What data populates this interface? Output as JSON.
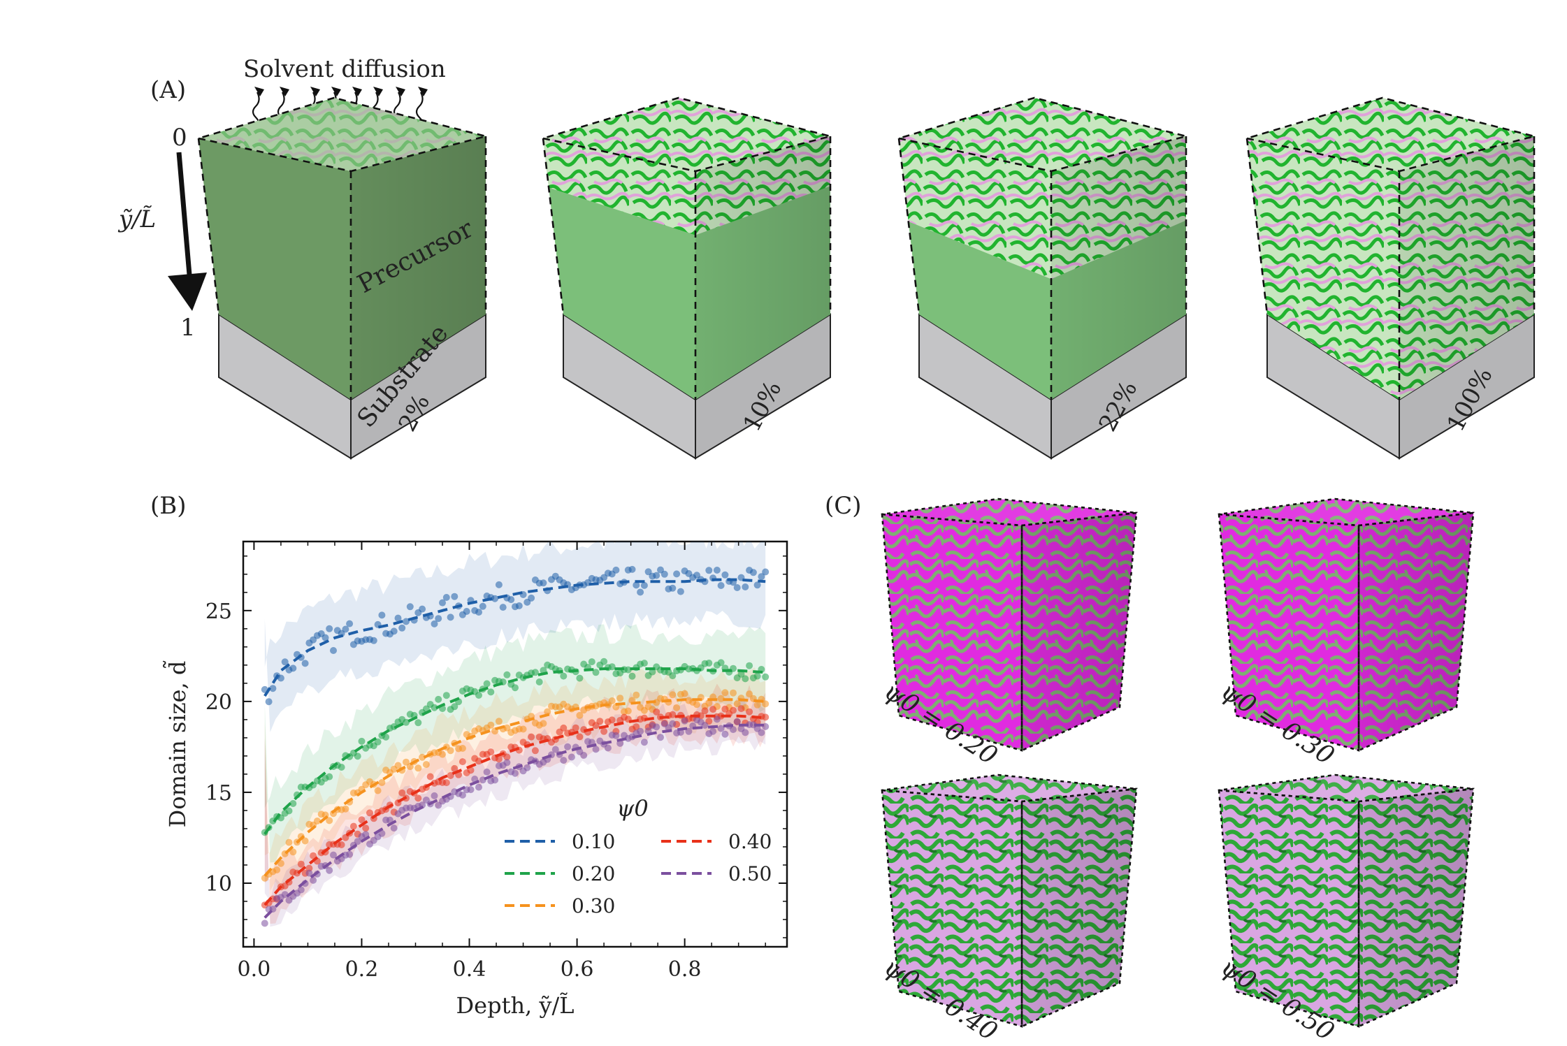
{
  "panel_a": {
    "label": "(A)",
    "solvent_label": "Solvent diffusion",
    "axis_label": "ỹ/L̃",
    "axis_top": "0",
    "axis_bottom": "1",
    "precursor_label": "Precursor",
    "substrate_label": "Substrate",
    "cubes": [
      {
        "percent": "2%",
        "fraction": 0.02
      },
      {
        "percent": "10%",
        "fraction": 0.1
      },
      {
        "percent": "22%",
        "fraction": 0.22
      },
      {
        "percent": "100%",
        "fraction": 1.0
      }
    ]
  },
  "panel_b": {
    "label": "(B)",
    "chart_data": {
      "type": "line",
      "xlabel": "Depth, ỹ/L̃",
      "ylabel": "Domain size, d̃",
      "xlim": [
        -0.02,
        0.99
      ],
      "ylim": [
        6.5,
        28.8
      ],
      "xticks": [
        "0.0",
        "0.2",
        "0.4",
        "0.6",
        "0.8"
      ],
      "xtick_values": [
        0.0,
        0.2,
        0.4,
        0.6,
        0.8
      ],
      "yticks": [
        "10",
        "15",
        "20",
        "25"
      ],
      "ytick_values": [
        10,
        15,
        20,
        25
      ],
      "grid": false,
      "legend_title": "ψ0",
      "legend_placement": "lower-right",
      "series": [
        {
          "name": "0.10",
          "color": "#1f5fa8",
          "x": [
            0.02,
            0.05,
            0.1,
            0.15,
            0.2,
            0.25,
            0.3,
            0.35,
            0.4,
            0.45,
            0.5,
            0.55,
            0.6,
            0.65,
            0.7,
            0.75,
            0.8,
            0.85,
            0.9,
            0.95
          ],
          "y": [
            20.3,
            21.7,
            22.8,
            23.5,
            23.9,
            24.2,
            24.6,
            25.0,
            25.4,
            25.7,
            26.0,
            26.2,
            26.4,
            26.5,
            26.6,
            26.6,
            26.6,
            26.7,
            26.7,
            26.6
          ]
        },
        {
          "name": "0.20",
          "color": "#1fa34a",
          "x": [
            0.02,
            0.05,
            0.1,
            0.15,
            0.2,
            0.25,
            0.3,
            0.35,
            0.4,
            0.45,
            0.5,
            0.55,
            0.6,
            0.65,
            0.7,
            0.75,
            0.8,
            0.85,
            0.9,
            0.95
          ],
          "y": [
            12.7,
            13.9,
            15.3,
            16.5,
            17.5,
            18.4,
            19.1,
            19.8,
            20.4,
            20.9,
            21.3,
            21.6,
            21.7,
            21.8,
            21.8,
            21.8,
            21.8,
            21.7,
            21.7,
            21.6
          ]
        },
        {
          "name": "0.30",
          "color": "#f5921e",
          "x": [
            0.02,
            0.05,
            0.1,
            0.15,
            0.2,
            0.25,
            0.3,
            0.35,
            0.4,
            0.45,
            0.5,
            0.55,
            0.6,
            0.65,
            0.7,
            0.75,
            0.8,
            0.85,
            0.9,
            0.95
          ],
          "y": [
            10.4,
            11.4,
            12.8,
            14.0,
            15.0,
            15.9,
            16.7,
            17.4,
            18.0,
            18.5,
            18.9,
            19.3,
            19.6,
            19.8,
            19.9,
            20.0,
            20.1,
            20.1,
            20.1,
            20.0
          ]
        },
        {
          "name": "0.40",
          "color": "#e8311a",
          "x": [
            0.02,
            0.05,
            0.1,
            0.15,
            0.2,
            0.25,
            0.3,
            0.35,
            0.4,
            0.45,
            0.5,
            0.55,
            0.6,
            0.65,
            0.7,
            0.75,
            0.8,
            0.85,
            0.9,
            0.95
          ],
          "y": [
            8.8,
            9.8,
            11.0,
            12.2,
            13.2,
            14.2,
            15.0,
            15.8,
            16.4,
            17.0,
            17.5,
            17.9,
            18.3,
            18.6,
            18.9,
            19.1,
            19.2,
            19.2,
            19.2,
            19.1
          ]
        },
        {
          "name": "0.50",
          "color": "#7b4f9e",
          "x": [
            0.02,
            0.05,
            0.1,
            0.15,
            0.2,
            0.25,
            0.3,
            0.35,
            0.4,
            0.45,
            0.5,
            0.55,
            0.6,
            0.65,
            0.7,
            0.75,
            0.8,
            0.85,
            0.9,
            0.95
          ],
          "y": [
            8.1,
            9.0,
            10.2,
            11.3,
            12.3,
            13.2,
            14.0,
            14.7,
            15.4,
            16.0,
            16.5,
            17.0,
            17.4,
            17.7,
            18.0,
            18.3,
            18.5,
            18.6,
            18.7,
            18.7
          ]
        }
      ]
    }
  },
  "panel_c": {
    "label": "(C)",
    "cubes": [
      {
        "label": "ψ0 = 0.20",
        "magenta_share": 0.7
      },
      {
        "label": "ψ0 = 0.30",
        "magenta_share": 0.55
      },
      {
        "label": "ψ0 = 0.40",
        "magenta_share": 0.35
      },
      {
        "label": "ψ0 = 0.50",
        "magenta_share": 0.25
      }
    ]
  },
  "colors": {
    "precursor_green": "#6d9a64",
    "film_green": "#7cbf7a",
    "pattern_green": "#22b832",
    "pattern_pink": "#e8a6e0",
    "magenta": "#e02be0",
    "substrate_gray": "#c4c4c6"
  }
}
